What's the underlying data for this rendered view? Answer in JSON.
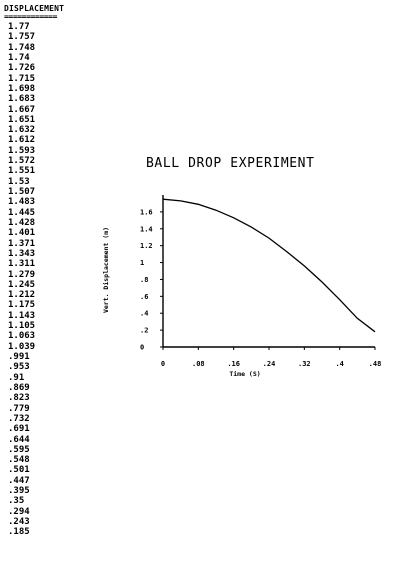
{
  "listing": {
    "header": "DISPLACEMENT",
    "underline": "============",
    "values": [
      "1.77",
      "1.757",
      "1.748",
      "1.74",
      "1.726",
      "1.715",
      "1.698",
      "1.683",
      "1.667",
      "1.651",
      "1.632",
      "1.612",
      "1.593",
      "1.572",
      "1.551",
      "1.53",
      "1.507",
      "1.483",
      "1.445",
      "1.428",
      "1.401",
      "1.371",
      "1.343",
      "1.311",
      "1.279",
      "1.245",
      "1.212",
      "1.175",
      "1.143",
      "1.105",
      "1.063",
      "1.039",
      ".991",
      ".953",
      ".91",
      ".869",
      ".823",
      ".779",
      ".732",
      ".691",
      ".644",
      ".595",
      ".548",
      ".501",
      ".447",
      ".395",
      ".35",
      ".294",
      ".243",
      ".185"
    ]
  },
  "chart_data": {
    "type": "line",
    "title": "BALL DROP EXPERIMENT",
    "xlabel": "Time (S)",
    "ylabel": "Vert. Displacement (m)",
    "xlim": [
      0,
      0.48
    ],
    "ylim": [
      0,
      1.8
    ],
    "xticks": [
      "0",
      ".08",
      ".16",
      ".24",
      ".32",
      ".4",
      ".48"
    ],
    "xtick_values": [
      0,
      0.08,
      0.16,
      0.24,
      0.32,
      0.4,
      0.48
    ],
    "yticks": [
      "0",
      ".2",
      ".4",
      ".6",
      ".8",
      "1",
      "1.2",
      "1.4",
      "1.6"
    ],
    "ytick_values": [
      0,
      0.2,
      0.4,
      0.6,
      0.8,
      1.0,
      1.2,
      1.4,
      1.6
    ],
    "grid": false,
    "series": [
      {
        "x": [
          0,
          0.04,
          0.08,
          0.12,
          0.16,
          0.2,
          0.24,
          0.28,
          0.32,
          0.36,
          0.4,
          0.44,
          0.48
        ],
        "y": [
          1.75,
          1.73,
          1.69,
          1.62,
          1.53,
          1.42,
          1.29,
          1.13,
          0.96,
          0.77,
          0.56,
          0.34,
          0.18
        ]
      }
    ],
    "colors": {
      "line": "#000000"
    }
  }
}
